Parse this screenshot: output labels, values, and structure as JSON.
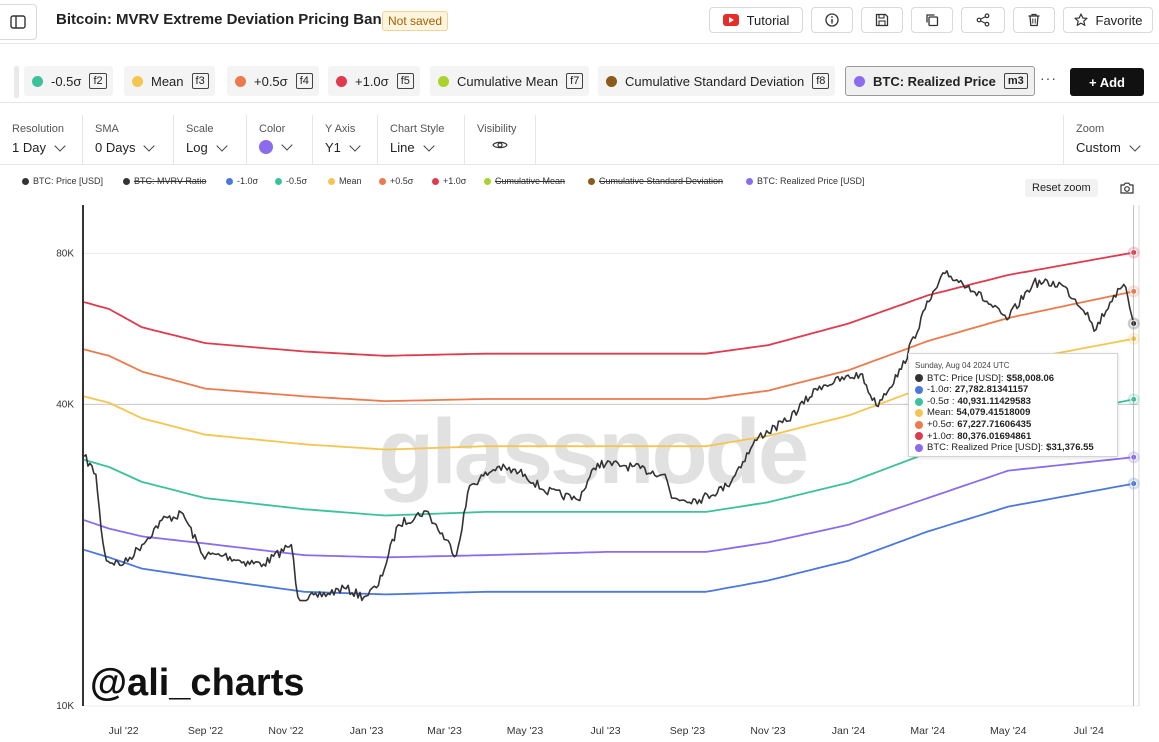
{
  "header": {
    "title": "Bitcoin: MVRV Extreme Deviation Pricing Bands",
    "badge": "Not saved",
    "tutorial_label": "Tutorial",
    "favorite_label": "Favorite"
  },
  "metrics": [
    {
      "label": "-0.5σ",
      "key": "f2",
      "color": "#3cc29a"
    },
    {
      "label": "Mean",
      "key": "f3",
      "color": "#f4c651"
    },
    {
      "label": "+0.5σ",
      "key": "f4",
      "color": "#ec7a4d"
    },
    {
      "label": "+1.0σ",
      "key": "f5",
      "color": "#e03a4e"
    },
    {
      "label": "Cumulative Mean",
      "key": "f7",
      "color": "#a9d22b"
    },
    {
      "label": "Cumulative Standard Deviation",
      "key": "f8",
      "color": "#8a5a1f"
    },
    {
      "label": "BTC: Realized Price",
      "key": "m3",
      "color": "#8b6cef",
      "active": true
    }
  ],
  "more_label": "···",
  "add_label": "+ Add",
  "settings": {
    "resolution": {
      "label": "Resolution",
      "value": "1 Day"
    },
    "sma": {
      "label": "SMA",
      "value": "0 Days"
    },
    "scale": {
      "label": "Scale",
      "value": "Log"
    },
    "color": {
      "label": "Color",
      "value": "#8b6cef"
    },
    "yaxis": {
      "label": "Y Axis",
      "value": "Y1"
    },
    "chart_style": {
      "label": "Chart Style",
      "value": "Line"
    },
    "visibility": {
      "label": "Visibility"
    },
    "zoom": {
      "label": "Zoom",
      "value": "Custom"
    }
  },
  "legend": [
    {
      "label": "BTC: Price [USD]",
      "color": "#333333",
      "struck": false
    },
    {
      "label": "BTC: MVRV Ratio",
      "color": "#333333",
      "struck": true
    },
    {
      "label": "-1.0σ",
      "color": "#4a78dc",
      "struck": false
    },
    {
      "label": "-0.5σ",
      "color": "#3cc29a",
      "struck": false
    },
    {
      "label": "Mean",
      "color": "#f4c651",
      "struck": false
    },
    {
      "label": "+0.5σ",
      "color": "#ec7a4d",
      "struck": false
    },
    {
      "label": "+1.0σ",
      "color": "#e03a4e",
      "struck": false
    },
    {
      "label": "Cumulative Mean",
      "color": "#a9d22b",
      "struck": true
    },
    {
      "label": "Cumulative Standard Deviation",
      "color": "#8a5a1f",
      "struck": true
    },
    {
      "label": "BTC: Realized Price [USD]",
      "color": "#8b6cef",
      "struck": false
    }
  ],
  "reset_zoom_label": "Reset zoom",
  "watermark": "glassnode",
  "author": "@ali_charts",
  "tooltip": {
    "date": "Sunday, Aug 04 2024 UTC",
    "rows": [
      {
        "label": "BTC: Price [USD]:",
        "value": "$58,008.06",
        "color": "#333333"
      },
      {
        "label": "-1.0σ:",
        "value": "27,782.81341157",
        "color": "#4a78dc"
      },
      {
        "label": "-0.5σ :",
        "value": "40,931.11429583",
        "color": "#3cc29a"
      },
      {
        "label": "Mean:",
        "value": "54,079.41518009",
        "color": "#f4c651"
      },
      {
        "label": "+0.5σ:",
        "value": "67,227.71606435",
        "color": "#ec7a4d"
      },
      {
        "label": "+1.0σ:",
        "value": "80,376.01694861",
        "color": "#e03a4e"
      },
      {
        "label": "BTC: Realized Price [USD]:",
        "value": "$31,376.55",
        "color": "#8b6cef"
      }
    ]
  },
  "chart_data": {
    "type": "line",
    "scale": "log",
    "ylim": [
      10000,
      100000
    ],
    "yticks": [
      {
        "value": 10000,
        "label": "10K"
      },
      {
        "value": 40000,
        "label": "40K"
      },
      {
        "value": 80000,
        "label": "80K"
      }
    ],
    "xlim": [
      "2022-06-01",
      "2024-08-08"
    ],
    "xticks": [
      {
        "date": "2022-07-01",
        "label": "Jul '22"
      },
      {
        "date": "2022-09-01",
        "label": "Sep '22"
      },
      {
        "date": "2022-11-01",
        "label": "Nov '22"
      },
      {
        "date": "2023-01-01",
        "label": "Jan '23"
      },
      {
        "date": "2023-03-01",
        "label": "Mar '23"
      },
      {
        "date": "2023-05-01",
        "label": "May '23"
      },
      {
        "date": "2023-07-01",
        "label": "Jul '23"
      },
      {
        "date": "2023-09-01",
        "label": "Sep '23"
      },
      {
        "date": "2023-11-01",
        "label": "Nov '23"
      },
      {
        "date": "2024-01-01",
        "label": "Jan '24"
      },
      {
        "date": "2024-03-01",
        "label": "Mar '24"
      },
      {
        "date": "2024-05-01",
        "label": "May '24"
      },
      {
        "date": "2024-07-01",
        "label": "Jul '24"
      }
    ],
    "reference_line": 40000,
    "series": [
      {
        "name": "+1.0σ",
        "color": "#e03a4e",
        "points": [
          [
            "2022-06-01",
            64000
          ],
          [
            "2022-06-20",
            62000
          ],
          [
            "2022-07-15",
            57000
          ],
          [
            "2022-09-01",
            53000
          ],
          [
            "2022-11-15",
            51000
          ],
          [
            "2023-01-15",
            50000
          ],
          [
            "2023-04-01",
            50500
          ],
          [
            "2023-07-01",
            50500
          ],
          [
            "2023-09-15",
            50500
          ],
          [
            "2023-11-01",
            52500
          ],
          [
            "2024-01-01",
            58000
          ],
          [
            "2024-03-01",
            66000
          ],
          [
            "2024-05-01",
            72500
          ],
          [
            "2024-08-04",
            80376
          ]
        ]
      },
      {
        "name": "+0.5σ",
        "color": "#ec7a4d",
        "points": [
          [
            "2022-06-01",
            51500
          ],
          [
            "2022-06-20",
            50000
          ],
          [
            "2022-07-15",
            46500
          ],
          [
            "2022-09-01",
            43000
          ],
          [
            "2022-11-15",
            41500
          ],
          [
            "2023-01-15",
            40600
          ],
          [
            "2023-04-01",
            41000
          ],
          [
            "2023-07-01",
            41000
          ],
          [
            "2023-09-15",
            41000
          ],
          [
            "2023-11-01",
            42600
          ],
          [
            "2024-01-01",
            46800
          ],
          [
            "2024-03-01",
            53500
          ],
          [
            "2024-05-01",
            59500
          ],
          [
            "2024-08-04",
            67228
          ]
        ]
      },
      {
        "name": "Mean",
        "color": "#f4c651",
        "points": [
          [
            "2022-06-01",
            41500
          ],
          [
            "2022-06-20",
            40300
          ],
          [
            "2022-07-15",
            37500
          ],
          [
            "2022-09-01",
            34800
          ],
          [
            "2022-11-15",
            33300
          ],
          [
            "2023-01-15",
            32500
          ],
          [
            "2023-04-01",
            33000
          ],
          [
            "2023-07-01",
            33000
          ],
          [
            "2023-09-15",
            33000
          ],
          [
            "2023-11-01",
            34600
          ],
          [
            "2024-01-01",
            38000
          ],
          [
            "2024-03-01",
            43500
          ],
          [
            "2024-05-01",
            48500
          ],
          [
            "2024-08-04",
            54079
          ]
        ]
      },
      {
        "name": "-0.5σ",
        "color": "#3cc29a",
        "points": [
          [
            "2022-06-01",
            31000
          ],
          [
            "2022-06-20",
            30000
          ],
          [
            "2022-07-15",
            28000
          ],
          [
            "2022-09-01",
            26000
          ],
          [
            "2022-11-15",
            24700
          ],
          [
            "2023-01-15",
            24000
          ],
          [
            "2023-04-01",
            24400
          ],
          [
            "2023-07-01",
            24400
          ],
          [
            "2023-09-15",
            24400
          ],
          [
            "2023-11-01",
            25500
          ],
          [
            "2024-01-01",
            27900
          ],
          [
            "2024-03-01",
            32000
          ],
          [
            "2024-05-01",
            36500
          ],
          [
            "2024-08-04",
            40931
          ]
        ]
      },
      {
        "name": "BTC: Realized Price [USD]",
        "color": "#8b6cef",
        "points": [
          [
            "2022-06-01",
            23500
          ],
          [
            "2022-06-20",
            22600
          ],
          [
            "2022-07-15",
            21800
          ],
          [
            "2022-09-01",
            21100
          ],
          [
            "2022-11-15",
            20000
          ],
          [
            "2023-01-15",
            19800
          ],
          [
            "2023-04-01",
            20000
          ],
          [
            "2023-07-01",
            20300
          ],
          [
            "2023-09-15",
            20300
          ],
          [
            "2023-11-01",
            21200
          ],
          [
            "2024-01-01",
            23000
          ],
          [
            "2024-03-01",
            26000
          ],
          [
            "2024-05-01",
            29500
          ],
          [
            "2024-08-04",
            31377
          ]
        ]
      },
      {
        "name": "-1.0σ",
        "color": "#4a78dc",
        "points": [
          [
            "2022-06-01",
            20500
          ],
          [
            "2022-06-20",
            19800
          ],
          [
            "2022-07-15",
            18800
          ],
          [
            "2022-09-01",
            18000
          ],
          [
            "2022-11-15",
            16900
          ],
          [
            "2023-01-15",
            16700
          ],
          [
            "2023-04-01",
            16900
          ],
          [
            "2023-07-01",
            16900
          ],
          [
            "2023-09-15",
            16900
          ],
          [
            "2023-11-01",
            17800
          ],
          [
            "2024-01-01",
            19500
          ],
          [
            "2024-03-01",
            22300
          ],
          [
            "2024-05-01",
            25000
          ],
          [
            "2024-08-04",
            27783
          ]
        ]
      },
      {
        "name": "BTC: Price [USD]",
        "color": "#333333",
        "points": [
          [
            "2022-06-01",
            31500
          ],
          [
            "2022-06-10",
            29000
          ],
          [
            "2022-06-14",
            22500
          ],
          [
            "2022-06-18",
            19500
          ],
          [
            "2022-07-01",
            19200
          ],
          [
            "2022-07-15",
            21000
          ],
          [
            "2022-07-30",
            23500
          ],
          [
            "2022-08-15",
            24200
          ],
          [
            "2022-08-30",
            20000
          ],
          [
            "2022-09-15",
            20000
          ],
          [
            "2022-09-30",
            19400
          ],
          [
            "2022-10-15",
            19200
          ],
          [
            "2022-11-05",
            21000
          ],
          [
            "2022-11-10",
            16500
          ],
          [
            "2022-11-25",
            16500
          ],
          [
            "2022-12-15",
            17200
          ],
          [
            "2022-12-30",
            16500
          ],
          [
            "2023-01-10",
            17400
          ],
          [
            "2023-01-25",
            23000
          ],
          [
            "2023-02-15",
            24500
          ],
          [
            "2023-03-10",
            20000
          ],
          [
            "2023-03-20",
            27500
          ],
          [
            "2023-04-10",
            30000
          ],
          [
            "2023-05-01",
            29000
          ],
          [
            "2023-05-15",
            27000
          ],
          [
            "2023-06-10",
            25800
          ],
          [
            "2023-06-25",
            30500
          ],
          [
            "2023-07-15",
            30200
          ],
          [
            "2023-08-15",
            29000
          ],
          [
            "2023-08-20",
            26000
          ],
          [
            "2023-09-10",
            25800
          ],
          [
            "2023-10-01",
            27500
          ],
          [
            "2023-10-25",
            34500
          ],
          [
            "2023-11-15",
            37000
          ],
          [
            "2023-12-10",
            43500
          ],
          [
            "2024-01-10",
            46000
          ],
          [
            "2024-01-22",
            39800
          ],
          [
            "2024-02-10",
            47000
          ],
          [
            "2024-02-28",
            62000
          ],
          [
            "2024-03-14",
            73000
          ],
          [
            "2024-04-01",
            69000
          ],
          [
            "2024-04-30",
            59000
          ],
          [
            "2024-05-20",
            70000
          ],
          [
            "2024-06-10",
            69500
          ],
          [
            "2024-06-30",
            61000
          ],
          [
            "2024-07-05",
            56000
          ],
          [
            "2024-07-20",
            66000
          ],
          [
            "2024-07-29",
            68500
          ],
          [
            "2024-08-04",
            58008
          ]
        ]
      }
    ],
    "hover_date": "2024-08-04"
  }
}
